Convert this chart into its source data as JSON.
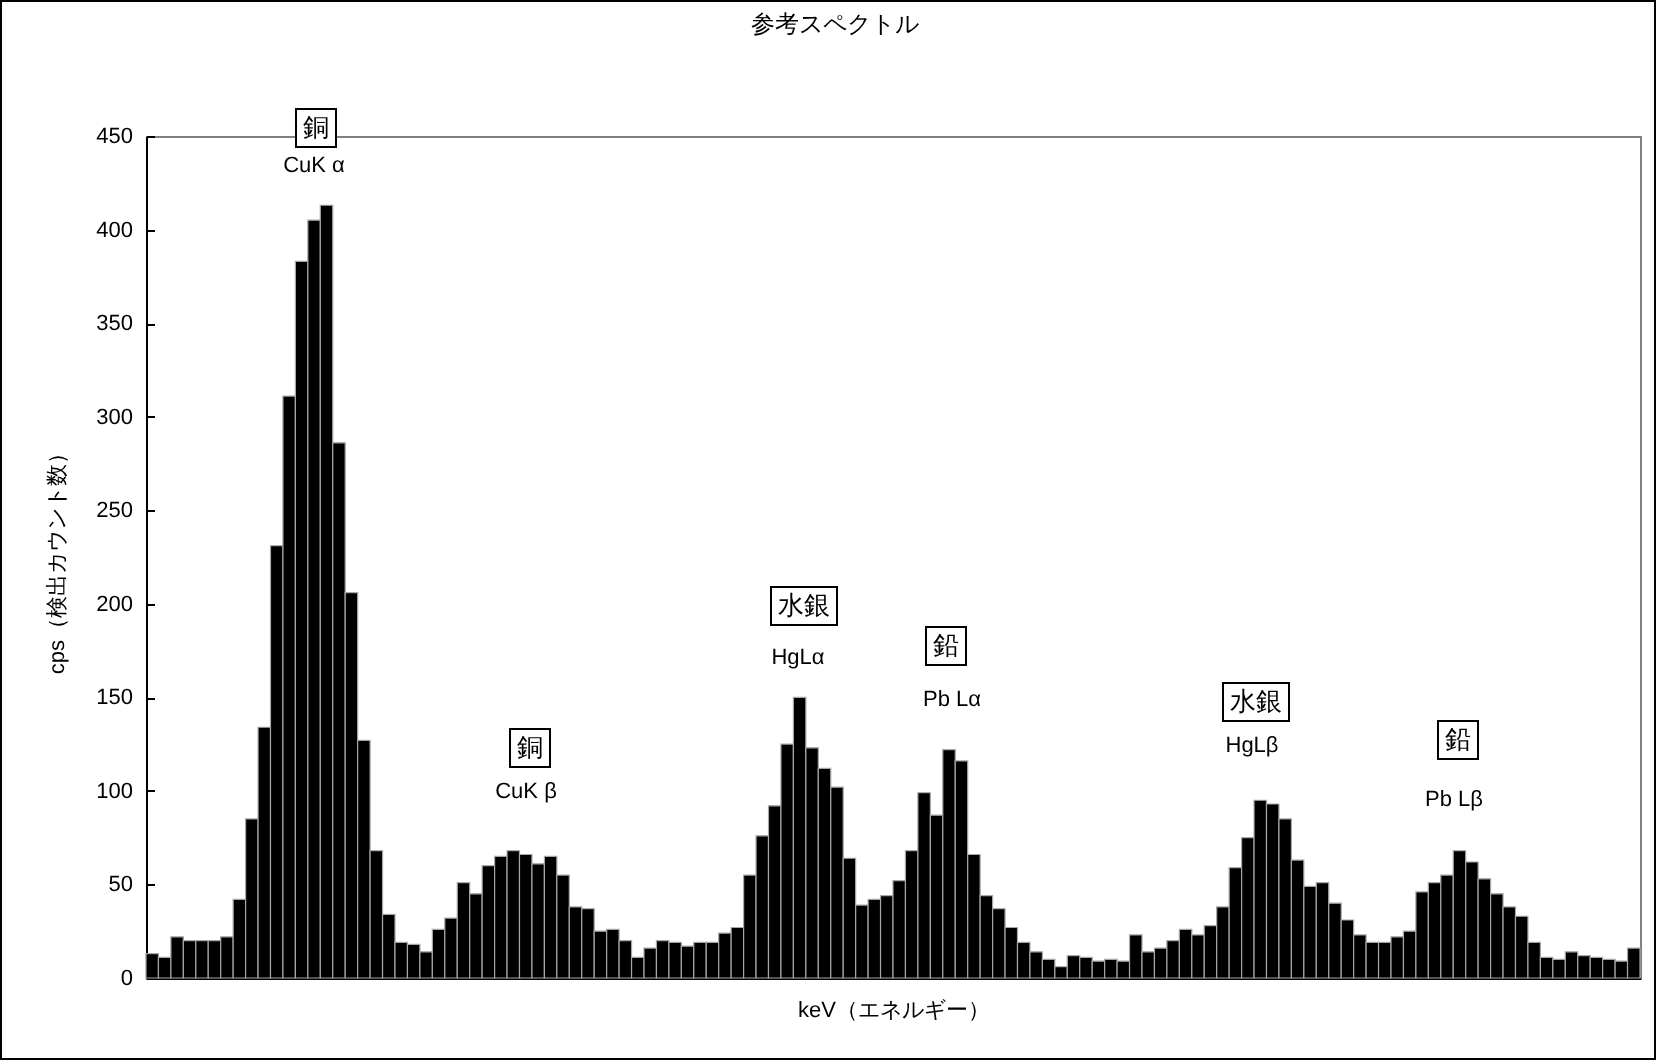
{
  "chart_data": {
    "type": "bar",
    "title": "参考スペクトル",
    "xlabel": "keV（エネルギー）",
    "ylabel": "cps（検出カウント数）",
    "categories": [
      null,
      null,
      null,
      null,
      null,
      null,
      null,
      null,
      null,
      null,
      null,
      null,
      null,
      null,
      null,
      null,
      null,
      null,
      null,
      null,
      null,
      null,
      null,
      null,
      null,
      null,
      null,
      null,
      null,
      null,
      null,
      null,
      null,
      null,
      null,
      null,
      null,
      null,
      null,
      null,
      null,
      null,
      null,
      null,
      null,
      null,
      null,
      null,
      null,
      null,
      null,
      null,
      null,
      null,
      null,
      null,
      null,
      null,
      null,
      null,
      null,
      null,
      null,
      null,
      null,
      null,
      null,
      null,
      null,
      null,
      null,
      null,
      null,
      null,
      null,
      null,
      null,
      null,
      null,
      null,
      null,
      null,
      null,
      null,
      null,
      null,
      null,
      null,
      null,
      null,
      null,
      null,
      null,
      null,
      null,
      null,
      null,
      null,
      null,
      null,
      null,
      null,
      null,
      null,
      null,
      null,
      null,
      null,
      null,
      null,
      null,
      null,
      null,
      null,
      null,
      null,
      null,
      null,
      null,
      null
    ],
    "values": [
      13,
      11,
      22,
      20,
      20,
      20,
      22,
      42,
      85,
      134,
      231,
      311,
      383,
      405,
      413,
      286,
      206,
      127,
      68,
      34,
      19,
      18,
      14,
      26,
      32,
      51,
      45,
      60,
      65,
      68,
      66,
      61,
      65,
      55,
      38,
      37,
      25,
      26,
      20,
      11,
      16,
      20,
      19,
      17,
      19,
      19,
      24,
      27,
      55,
      76,
      92,
      125,
      150,
      123,
      112,
      102,
      64,
      39,
      42,
      44,
      52,
      68,
      99,
      87,
      122,
      116,
      66,
      44,
      37,
      27,
      19,
      14,
      10,
      6,
      12,
      11,
      9,
      10,
      9,
      23,
      14,
      16,
      20,
      26,
      23,
      28,
      38,
      59,
      75,
      95,
      93,
      85,
      63,
      49,
      51,
      40,
      31,
      23,
      19,
      19,
      22,
      25,
      46,
      51,
      55,
      68,
      62,
      53,
      45,
      38,
      33,
      19,
      11,
      10,
      14,
      12,
      11,
      10,
      9,
      16
    ],
    "color": "#000000",
    "ylim": [
      0,
      450
    ],
    "yticks": [
      0,
      50,
      100,
      150,
      200,
      250,
      300,
      350,
      400,
      450
    ],
    "grid": false,
    "tick_labels": "y",
    "annotations": [
      "銅",
      "CuK α",
      "銅",
      "CuK β",
      "水銀",
      "HgLα",
      "鉛",
      "Pb Lα",
      "水銀",
      "HgLβ",
      "鉛",
      "Pb Lβ"
    ]
  }
}
